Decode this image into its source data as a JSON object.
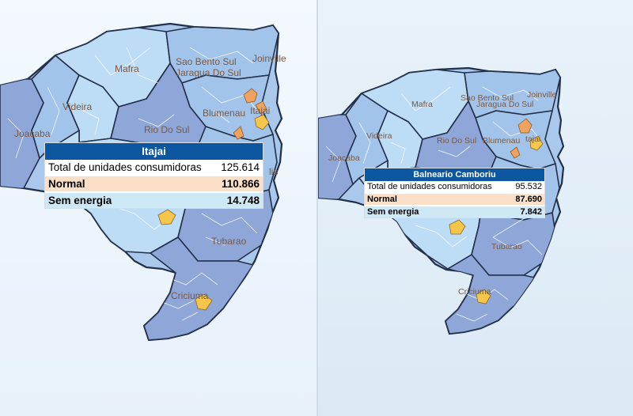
{
  "maps": [
    {
      "labels": {
        "mafra": "Mafra",
        "sao_bento_sul": "Sao Bento Sul",
        "joinville": "Joinville",
        "jaragua_do_sul": "Jaragua Do Sul",
        "videira": "Videira",
        "blumenau": "Blumenau",
        "itajai": "Itajai",
        "rio_do_sul": "Rio Do Sul",
        "joacaba": "Joacaba",
        "florianopolis_partial": "lis",
        "tubarao": "Tubarao",
        "criciuma": "Criciuma"
      },
      "tooltip": {
        "title": "Itajai",
        "total_label": "Total de unidades consumidoras",
        "total_value": "125.614",
        "normal_label": "Normal",
        "normal_value": "110.866",
        "sem_energia_label": "Sem energia",
        "sem_energia_value": "14.748"
      }
    },
    {
      "labels": {
        "mafra": "Mafra",
        "sao_bento_sul": "Sao Bento Sul",
        "joinville": "Joinville",
        "jaragua_do_sul": "Jaragua Do Sul",
        "videira": "Videira",
        "blumenau": "Blumenau",
        "itajai_partial": "tajai",
        "rio_do_sul": "Rio Do Sul",
        "joacaba": "Joacaba",
        "tubarao": "Tubarao",
        "criciuma": "Criciuma"
      },
      "tooltip": {
        "title": "Balneario Camboriu",
        "total_label": "Total de unidades consumidoras",
        "total_value": "95.532",
        "normal_label": "Normal",
        "normal_value": "87.690",
        "sem_energia_label": "Sem energia",
        "sem_energia_value": "7.842"
      }
    }
  ],
  "colors": {
    "header_blue": "#0c57a0",
    "normal_row": "#fbe0c7",
    "sem_energia_row": "#cfe8f6",
    "outage_orange": "#f0a35e",
    "outage_yellow": "#f6c64a",
    "region_light": "#bddcf6",
    "region_mid": "#a3c4ea",
    "region_dark": "#8fa6d8"
  }
}
